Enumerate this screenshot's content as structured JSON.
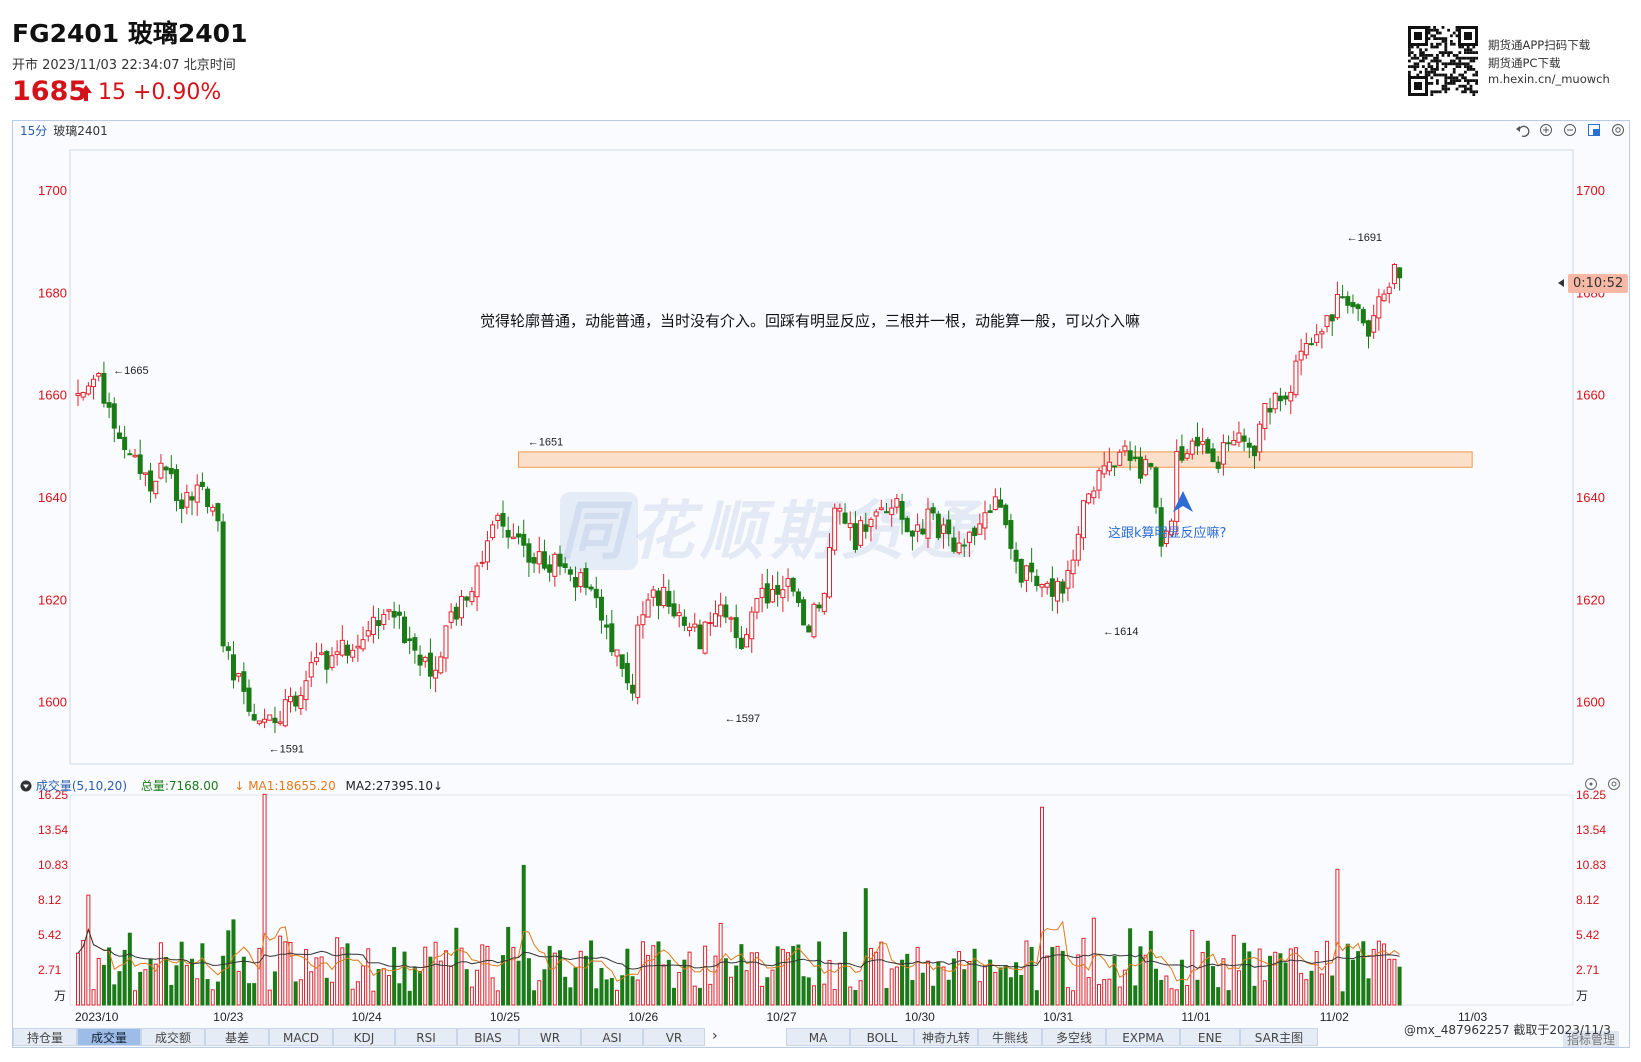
{
  "header": {
    "title": "FG2401 玻璃2401",
    "status": "开市  2023/11/03 22:34:07 北京时间",
    "price": "1685",
    "change": "15 +0.90%",
    "qr_lines": [
      "期货通APP扫码下载",
      "期货通PC下载",
      "m.hexin.cn/_muowch"
    ]
  },
  "chart_header": {
    "period": "15分",
    "symbol": "玻璃2401"
  },
  "toolbar_icons": [
    "undo-icon",
    "zoom-in-icon",
    "zoom-out-icon",
    "fullscreen-icon",
    "settings-icon"
  ],
  "countdown": "0:10:52",
  "annotation_text": "觉得轮廓普通，动能普通，当时没有介入。回踩有明显反应，三根并一根，动能算一般，可以介入嘛",
  "annotation_arrow_text": "这跟k算明显反应嘛?",
  "watermark": "同花顺期货通",
  "volume_header": {
    "title": "成交量(5,10,20)",
    "total": "总量:7168.00",
    "ma1": "MA1:18655.20",
    "ma2": "MA2:27395.10"
  },
  "tabs_left": [
    "持仓量",
    "成交量",
    "成交额",
    "基差",
    "MACD",
    "KDJ",
    "RSI",
    "BIAS",
    "WR",
    "ASI",
    "VR"
  ],
  "tabs_left_active": 1,
  "tabs_right": [
    "MA",
    "BOLL",
    "神奇九转",
    "牛熊线",
    "多空线",
    "EXPMA",
    "ENE",
    "SAR主图"
  ],
  "credit": "@mx_487962257  截取于2023/11/3",
  "overlay_button": "指标管理",
  "chart_data": [
    {
      "type": "candlestick",
      "title": "15分 玻璃2401",
      "yaxis_ticks": [
        1600,
        1620,
        1640,
        1660,
        1680,
        1700
      ],
      "ylim": [
        1588,
        1708
      ],
      "x_labels": [
        "2023/10",
        "10/23",
        "10/24",
        "10/25",
        "10/26",
        "10/27",
        "10/30",
        "10/31",
        "11/01",
        "11/02",
        "11/03"
      ],
      "path": [
        [
          0,
          1660
        ],
        [
          4,
          1662
        ],
        [
          7,
          1655
        ],
        [
          10,
          1648
        ],
        [
          14,
          1643
        ],
        [
          17,
          1645
        ],
        [
          20,
          1640
        ],
        [
          24,
          1642
        ],
        [
          27,
          1638
        ],
        [
          28,
          1612
        ],
        [
          31,
          1604
        ],
        [
          34,
          1599
        ],
        [
          38,
          1596
        ],
        [
          41,
          1600
        ],
        [
          45,
          1606
        ],
        [
          49,
          1609
        ],
        [
          53,
          1611
        ],
        [
          58,
          1617
        ],
        [
          62,
          1615
        ],
        [
          65,
          1608
        ],
        [
          69,
          1607
        ],
        [
          73,
          1618
        ],
        [
          77,
          1625
        ],
        [
          80,
          1633
        ],
        [
          82,
          1636
        ],
        [
          84,
          1632
        ],
        [
          88,
          1628
        ],
        [
          92,
          1627
        ],
        [
          97,
          1624
        ],
        [
          101,
          1618
        ],
        [
          104,
          1608
        ],
        [
          107,
          1602
        ],
        [
          108,
          1617
        ],
        [
          112,
          1621
        ],
        [
          116,
          1618
        ],
        [
          120,
          1612
        ],
        [
          124,
          1617
        ],
        [
          128,
          1613
        ],
        [
          132,
          1620
        ],
        [
          137,
          1622
        ],
        [
          141,
          1615
        ],
        [
          144,
          1622
        ],
        [
          146,
          1639
        ],
        [
          150,
          1632
        ],
        [
          154,
          1638
        ],
        [
          158,
          1641
        ],
        [
          160,
          1633
        ],
        [
          165,
          1636
        ],
        [
          169,
          1630
        ],
        [
          172,
          1633
        ],
        [
          175,
          1636
        ],
        [
          178,
          1640
        ],
        [
          182,
          1625
        ],
        [
          184,
          1626
        ],
        [
          187,
          1621
        ],
        [
          191,
          1624
        ],
        [
          194,
          1638
        ],
        [
          197,
          1644
        ],
        [
          199,
          1646
        ],
        [
          202,
          1648
        ],
        [
          205,
          1645
        ],
        [
          207,
          1647
        ],
        [
          209,
          1632
        ],
        [
          211,
          1637
        ],
        [
          212,
          1648
        ],
        [
          216,
          1651
        ],
        [
          219,
          1647
        ],
        [
          223,
          1652
        ],
        [
          227,
          1648
        ],
        [
          229,
          1656
        ],
        [
          233,
          1661
        ],
        [
          236,
          1667
        ],
        [
          238,
          1672
        ],
        [
          241,
          1675
        ],
        [
          244,
          1680
        ],
        [
          247,
          1676
        ],
        [
          249,
          1673
        ],
        [
          251,
          1679
        ],
        [
          253,
          1683
        ],
        [
          255,
          1685
        ]
      ],
      "labels": [
        {
          "text": "1665",
          "i": 6,
          "value": 1665
        },
        {
          "text": "1591",
          "i": 36,
          "value": 1591
        },
        {
          "text": "1651",
          "i": 86,
          "value": 1651
        },
        {
          "text": "1597",
          "i": 124,
          "value": 1597
        },
        {
          "text": "1614",
          "i": 197,
          "value": 1614
        },
        {
          "text": "1691",
          "i": 244,
          "value": 1691
        }
      ],
      "zone": {
        "from_i": 85,
        "to_i": 269,
        "low": 1646,
        "high": 1649
      },
      "bars": 256
    },
    {
      "type": "bar",
      "title": "成交量(5,10,20)",
      "unit": "万",
      "yaxis_ticks": [
        "2.71",
        "5.42",
        "8.12",
        "10.83",
        "13.54",
        "16.25"
      ],
      "ylim": [
        0,
        16.25
      ],
      "spikes": [
        {
          "i": 36,
          "value": 16.3
        },
        {
          "i": 186,
          "value": 15.3
        },
        {
          "i": 86,
          "value": 10.8
        },
        {
          "i": 243,
          "value": 10.5
        },
        {
          "i": 2,
          "value": 8.5
        },
        {
          "i": 152,
          "value": 9.0
        }
      ],
      "series": [
        {
          "name": "MA1"
        },
        {
          "name": "MA2"
        }
      ]
    }
  ]
}
